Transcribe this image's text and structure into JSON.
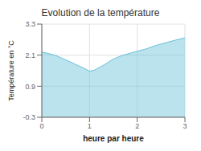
{
  "chart_data": {
    "type": "area",
    "title": "Evolution de la température",
    "xlabel": "heure par heure",
    "ylabel": "Température en °C",
    "x": [
      0,
      0.15,
      0.3,
      0.5,
      0.7,
      0.9,
      1.0,
      1.1,
      1.3,
      1.5,
      1.7,
      1.9,
      2.0,
      2.2,
      2.4,
      2.6,
      2.8,
      3.0
    ],
    "values": [
      2.22,
      2.16,
      2.08,
      1.92,
      1.75,
      1.58,
      1.48,
      1.52,
      1.72,
      1.95,
      2.1,
      2.2,
      2.25,
      2.35,
      2.48,
      2.58,
      2.68,
      2.77
    ],
    "color": "#68c0d8",
    "xlim": [
      0,
      3
    ],
    "ylim": [
      -0.3,
      3.3
    ],
    "xticks": [
      0,
      1,
      2,
      3
    ],
    "yticks": [
      -0.3,
      0.9,
      2.1,
      3.3
    ],
    "grid": true
  }
}
